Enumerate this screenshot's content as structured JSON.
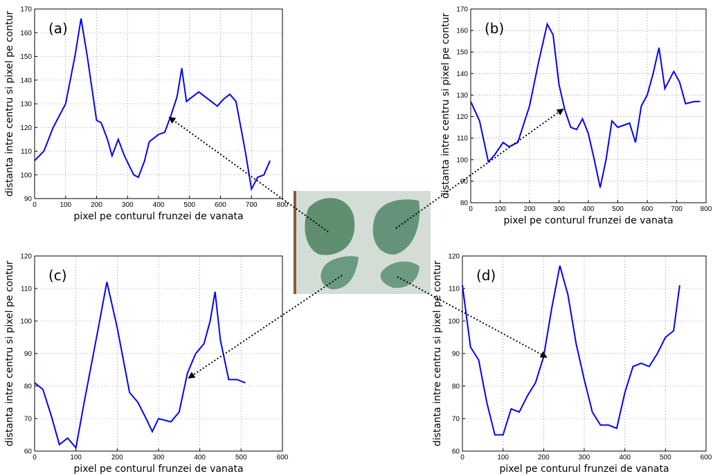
{
  "chart_data": [
    {
      "type": "line",
      "annotation": "(a)",
      "x_label": "pixel pe conturul frunzei de vanata",
      "y_label": "distanta intre centru si pixel pe contur",
      "x": [
        0,
        30,
        60,
        100,
        130,
        150,
        170,
        200,
        215,
        235,
        250,
        270,
        290,
        320,
        335,
        355,
        370,
        400,
        420,
        440,
        460,
        475,
        490,
        510,
        530,
        570,
        590,
        610,
        630,
        650,
        680,
        700,
        720,
        740,
        760
      ],
      "values": [
        106,
        110,
        120,
        130,
        150,
        166,
        150,
        123,
        122,
        115,
        108,
        115,
        108,
        100,
        99,
        106,
        114,
        117,
        118,
        125,
        133,
        145,
        131,
        133,
        135,
        131,
        129,
        132,
        134,
        131,
        110,
        94,
        99,
        100,
        106
      ],
      "color": "#0000ff",
      "xlim": [
        0,
        800
      ],
      "ylim": [
        90,
        170
      ],
      "xticks": [
        0,
        100,
        200,
        300,
        400,
        500,
        600,
        700,
        800
      ],
      "yticks": [
        90,
        100,
        110,
        120,
        130,
        140,
        150,
        160,
        170
      ],
      "grid": true
    },
    {
      "type": "line",
      "annotation": "(b)",
      "x_label": "pixel pe conturul frunzei de vanata",
      "y_label": "distanta intre centru si pixel pe contur",
      "x": [
        0,
        30,
        60,
        80,
        110,
        130,
        160,
        200,
        230,
        260,
        280,
        300,
        320,
        340,
        360,
        380,
        400,
        420,
        440,
        460,
        480,
        500,
        520,
        540,
        560,
        580,
        600,
        620,
        640,
        660,
        690,
        710,
        730,
        760,
        780
      ],
      "values": [
        127,
        118,
        99,
        102,
        108,
        106,
        108,
        125,
        145,
        163,
        158,
        135,
        123,
        115,
        114,
        119,
        112,
        100,
        87,
        100,
        118,
        115,
        116,
        117,
        108,
        125,
        130,
        140,
        152,
        133,
        141,
        136,
        126,
        127,
        127
      ],
      "color": "#0000ff",
      "xlim": [
        0,
        800
      ],
      "ylim": [
        80,
        170
      ],
      "xticks": [
        0,
        100,
        200,
        300,
        400,
        500,
        600,
        700,
        800
      ],
      "yticks": [
        80,
        90,
        100,
        110,
        120,
        130,
        140,
        150,
        160,
        170
      ],
      "grid": true
    },
    {
      "type": "line",
      "annotation": "(c)",
      "x_label": "pixel pe conturul frunzei de vanata",
      "y_label": "distanta intre centru si pixel pe contur",
      "x": [
        0,
        20,
        40,
        60,
        80,
        100,
        120,
        150,
        175,
        200,
        230,
        250,
        270,
        285,
        300,
        330,
        350,
        370,
        390,
        410,
        425,
        437,
        450,
        470,
        490,
        510
      ],
      "values": [
        81,
        79,
        71,
        62,
        64,
        61,
        75,
        95,
        112,
        98,
        78,
        75,
        70,
        66,
        70,
        69,
        72,
        84,
        90,
        93,
        100,
        109,
        94,
        82,
        82,
        81
      ],
      "color": "#0000ff",
      "xlim": [
        0,
        600
      ],
      "ylim": [
        60,
        120
      ],
      "xticks": [
        0,
        100,
        200,
        300,
        400,
        500,
        600
      ],
      "yticks": [
        60,
        70,
        80,
        90,
        100,
        110,
        120
      ],
      "grid": true
    },
    {
      "type": "line",
      "annotation": "(d)",
      "x_label": "pixel pe conturul frunzei de vanata",
      "y_label": "distanta intre centru si pixel pe contur",
      "x": [
        0,
        20,
        40,
        60,
        80,
        100,
        120,
        140,
        160,
        180,
        200,
        220,
        240,
        260,
        280,
        300,
        320,
        340,
        360,
        380,
        400,
        420,
        440,
        460,
        480,
        500,
        520,
        535
      ],
      "values": [
        111,
        92,
        88,
        75,
        65,
        65,
        73,
        72,
        77,
        81,
        89,
        104,
        117,
        108,
        93,
        82,
        72,
        68,
        68,
        67,
        78,
        86,
        87,
        86,
        90,
        95,
        97,
        111
      ],
      "color": "#0000ff",
      "xlim": [
        0,
        600
      ],
      "ylim": [
        60,
        120
      ],
      "xticks": [
        0,
        100,
        200,
        300,
        400,
        500,
        600
      ],
      "yticks": [
        60,
        70,
        80,
        90,
        100,
        110,
        120
      ],
      "grid": true
    }
  ]
}
